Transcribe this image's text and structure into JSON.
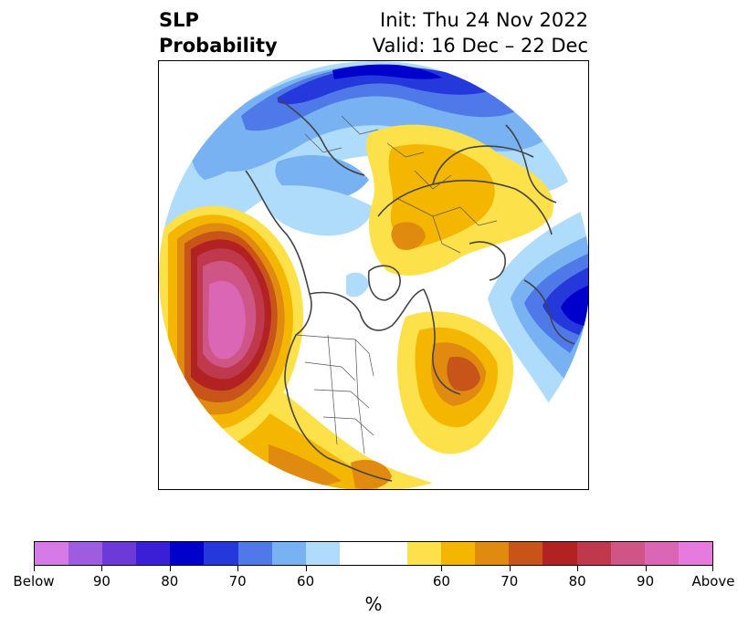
{
  "title": {
    "left_line1": "SLP",
    "left_line2": "Probability",
    "right_line1": "Init: Thu 24 Nov 2022",
    "right_line2": "Valid: 16 Dec – 22 Dec"
  },
  "colorbar": {
    "units": "%",
    "below_colors": [
      "#d67ae8",
      "#9e5ce0",
      "#6d39d8",
      "#3a1fd6",
      "#0000cc",
      "#2438dc",
      "#4f78e8",
      "#78b2f2",
      "#b0dcfb"
    ],
    "neutral_color": "#ffffff",
    "above_colors": [
      "#fde14b",
      "#f4b600",
      "#e08a10",
      "#c9541a",
      "#b22222",
      "#c0384c",
      "#ce5585",
      "#db66b6",
      "#e77ade"
    ],
    "tick_labels": [
      "Below",
      "90",
      "80",
      "70",
      "60",
      "60",
      "70",
      "80",
      "90",
      "Above"
    ]
  }
}
